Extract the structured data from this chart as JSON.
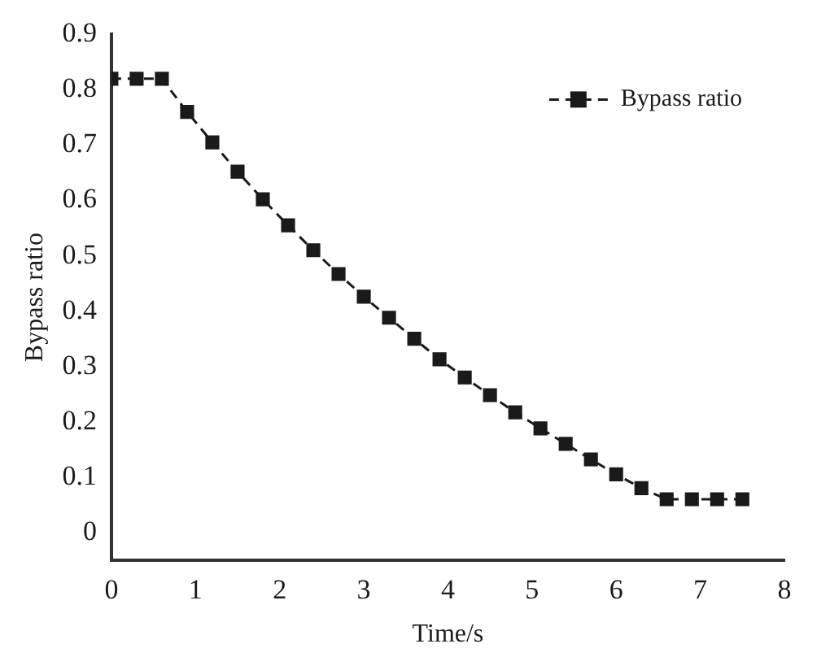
{
  "chart_data": {
    "type": "line",
    "xlabel": "Time/s",
    "ylabel": "Bypass ratio",
    "x": [
      0,
      0.3,
      0.6,
      0.9,
      1.2,
      1.5,
      1.8,
      2.1,
      2.4,
      2.7,
      3.0,
      3.3,
      3.6,
      3.9,
      4.2,
      4.5,
      4.8,
      5.1,
      5.4,
      5.7,
      6.0,
      6.3,
      6.6,
      6.9,
      7.2,
      7.5
    ],
    "series": [
      {
        "name": "Bypass ratio",
        "color": "#1a1a1a",
        "values": [
          0.82,
          0.82,
          0.82,
          0.76,
          0.705,
          0.652,
          0.602,
          0.555,
          0.51,
          0.467,
          0.426,
          0.388,
          0.35,
          0.313,
          0.28,
          0.248,
          0.217,
          0.188,
          0.16,
          0.132,
          0.105,
          0.08,
          0.06,
          0.06,
          0.06,
          0.06
        ]
      }
    ],
    "xlim": [
      0,
      8
    ],
    "xticks": [
      0,
      1,
      2,
      3,
      4,
      5,
      6,
      7,
      8
    ],
    "ylim": [
      -0.05,
      0.9
    ],
    "yticks": [
      0,
      0.1,
      0.2,
      0.3,
      0.4,
      0.5,
      0.6,
      0.7,
      0.8,
      0.9
    ],
    "legend": "top right",
    "marker": "square",
    "line_style": "dashed",
    "grid": false
  }
}
